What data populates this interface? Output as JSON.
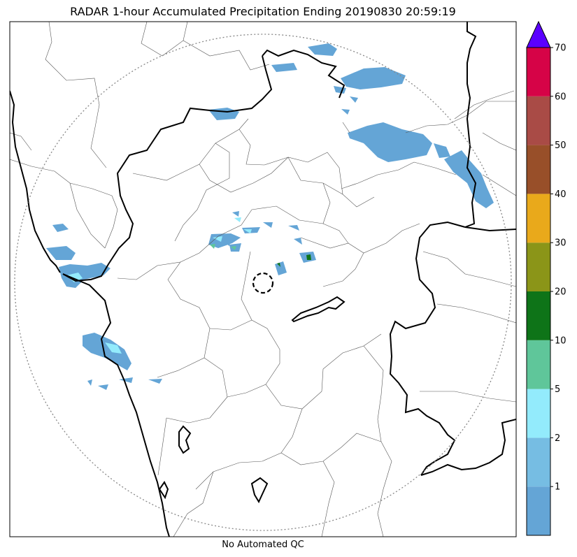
{
  "title": "RADAR 1-hour Accumulated Precipitation Ending 20190830 20:59:19",
  "footer": "No Automated QC",
  "colorbar": {
    "levels": [
      {
        "label": "",
        "color": "#64a5d6"
      },
      {
        "label": "1",
        "color": "#76bde3"
      },
      {
        "label": "2",
        "color": "#93ebfc"
      },
      {
        "label": "5",
        "color": "#5fc69a"
      },
      {
        "label": "10",
        "color": "#0e7418"
      },
      {
        "label": "20",
        "color": "#8b9518"
      },
      {
        "label": "30",
        "color": "#e9a91b"
      },
      {
        "label": "40",
        "color": "#984f29"
      },
      {
        "label": "50",
        "color": "#a94b46"
      },
      {
        "label": "60",
        "color": "#d60347"
      }
    ],
    "top_label": "70",
    "extend_color": "#5a00ff"
  }
}
